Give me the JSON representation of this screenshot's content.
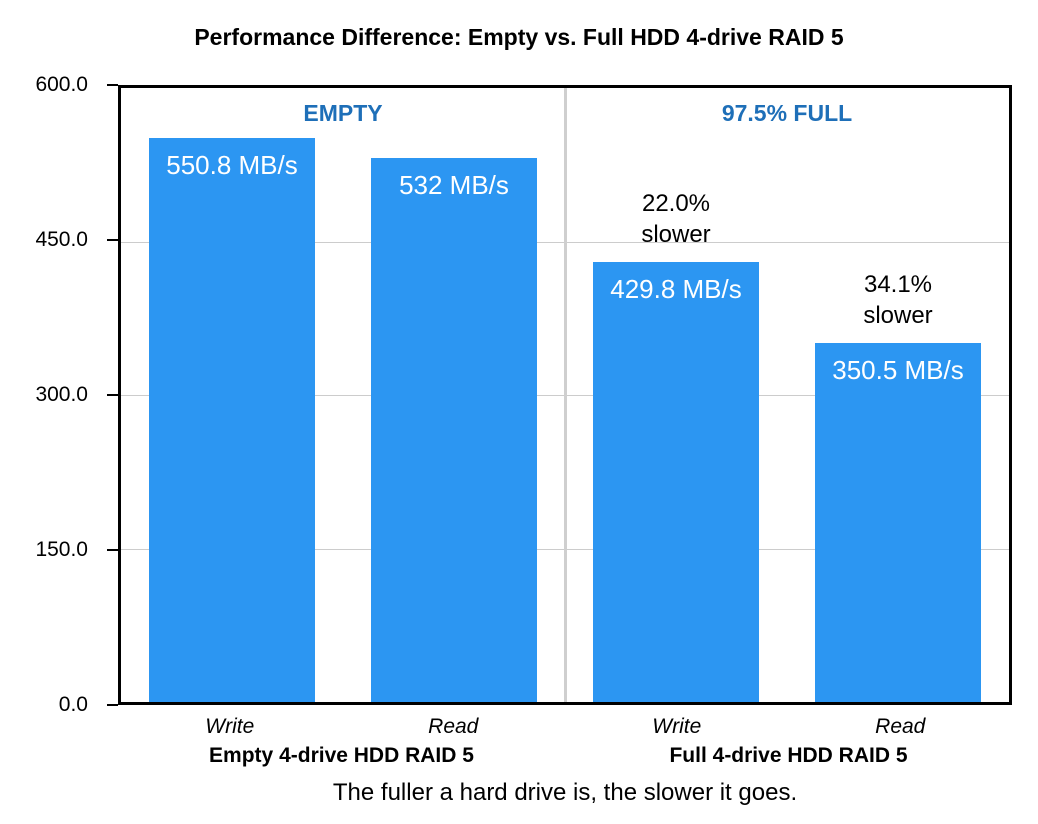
{
  "chart_data": {
    "type": "bar",
    "title": "Performance Difference: Empty vs. Full HDD 4-drive RAID 5",
    "xlabel": "",
    "ylabel": "",
    "units": "MB/s",
    "ylim": [
      0,
      600
    ],
    "y_ticks": [
      "600.0",
      "450.0",
      "300.0",
      "150.0",
      "0.0"
    ],
    "y_tick_values": [
      600,
      450,
      300,
      150,
      0
    ],
    "gridline_values": [
      450,
      300,
      150
    ],
    "grid": "horizontal",
    "legend": "none",
    "groups": [
      {
        "header": "EMPTY",
        "group_label": "Empty 4-drive HDD RAID 5",
        "bars": [
          {
            "x_label": "Write",
            "value": 550.8,
            "value_label": "550.8 MB/s"
          },
          {
            "x_label": "Read",
            "value": 532,
            "value_label": "532 MB/s"
          }
        ]
      },
      {
        "header": "97.5% FULL",
        "group_label": "Full 4-drive HDD RAID 5",
        "bars": [
          {
            "x_label": "Write",
            "value": 429.8,
            "value_label": "429.8 MB/s",
            "annotation": "22.0% slower"
          },
          {
            "x_label": "Read",
            "value": 350.5,
            "value_label": "350.5 MB/s",
            "annotation": "34.1% slower"
          }
        ]
      }
    ],
    "caption": "The fuller a hard drive is, the slower it goes.",
    "colors": {
      "bar": "#2C96F2",
      "section_header": "#1E6FB8",
      "value_label_text": "#FFFFFF",
      "gridline": "#CCCCCC",
      "divider": "#CFCFCF",
      "plot_border": "#000000",
      "text": "#000000",
      "background": "#FFFFFF"
    }
  }
}
